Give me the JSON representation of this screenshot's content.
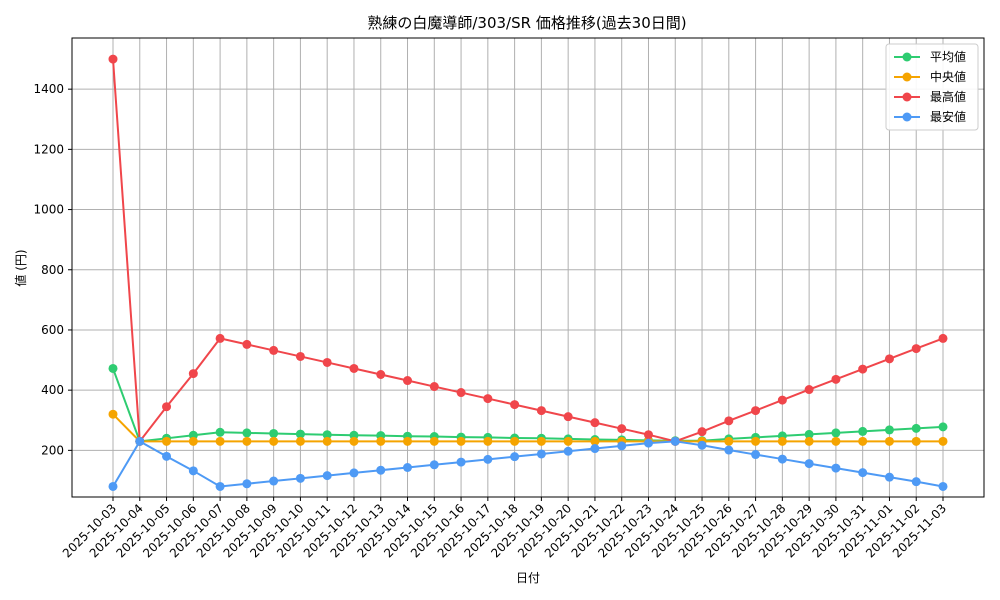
{
  "chart_data": {
    "type": "line",
    "title": "熟練の白魔導師/303/SR 価格推移(過去30日間)",
    "xlabel": "日付",
    "ylabel": "値 (円)",
    "ylim": [
      45,
      1570
    ],
    "yticks": [
      200,
      400,
      600,
      800,
      1000,
      1200,
      1400
    ],
    "grid": true,
    "legend_position": "top-right",
    "categories": [
      "2025-10-03",
      "2025-10-04",
      "2025-10-05",
      "2025-10-06",
      "2025-10-07",
      "2025-10-08",
      "2025-10-09",
      "2025-10-10",
      "2025-10-11",
      "2025-10-12",
      "2025-10-13",
      "2025-10-14",
      "2025-10-15",
      "2025-10-16",
      "2025-10-17",
      "2025-10-18",
      "2025-10-19",
      "2025-10-20",
      "2025-10-21",
      "2025-10-22",
      "2025-10-23",
      "2025-10-24",
      "2025-10-25",
      "2025-10-26",
      "2025-10-27",
      "2025-10-28",
      "2025-10-29",
      "2025-10-30",
      "2025-10-31",
      "2025-11-01",
      "2025-11-02",
      "2025-11-03"
    ],
    "series": [
      {
        "name": "平均値",
        "color": "#2ecc71",
        "values": [
          472,
          230,
          240,
          250,
          260,
          258,
          256,
          254,
          252,
          250,
          249,
          247,
          246,
          244,
          243,
          241,
          240,
          238,
          236,
          235,
          233,
          232,
          232,
          238,
          243,
          248,
          253,
          258,
          263,
          268,
          273,
          278
        ]
      },
      {
        "name": "中央値",
        "color": "#f5a400",
        "values": [
          320,
          230,
          230,
          230,
          230,
          230,
          230,
          230,
          230,
          230,
          230,
          230,
          230,
          230,
          230,
          230,
          230,
          230,
          230,
          230,
          230,
          230,
          230,
          230,
          230,
          230,
          230,
          230,
          230,
          230,
          230,
          230
        ]
      },
      {
        "name": "最高値",
        "color": "#f0464b",
        "values": [
          1500,
          230,
          345,
          455,
          572,
          552,
          532,
          512,
          492,
          472,
          452,
          432,
          412,
          392,
          372,
          352,
          332,
          312,
          292,
          272,
          252,
          230,
          262,
          298,
          332,
          367,
          402,
          436,
          470,
          504,
          538,
          572
        ]
      },
      {
        "name": "最安値",
        "color": "#4e9af5",
        "values": [
          80,
          230,
          180,
          132,
          80,
          89,
          98,
          107,
          116,
          125,
          134,
          143,
          152,
          161,
          170,
          179,
          188,
          197,
          206,
          215,
          224,
          230,
          217,
          201,
          186,
          171,
          156,
          141,
          126,
          111,
          96,
          80
        ]
      }
    ]
  }
}
